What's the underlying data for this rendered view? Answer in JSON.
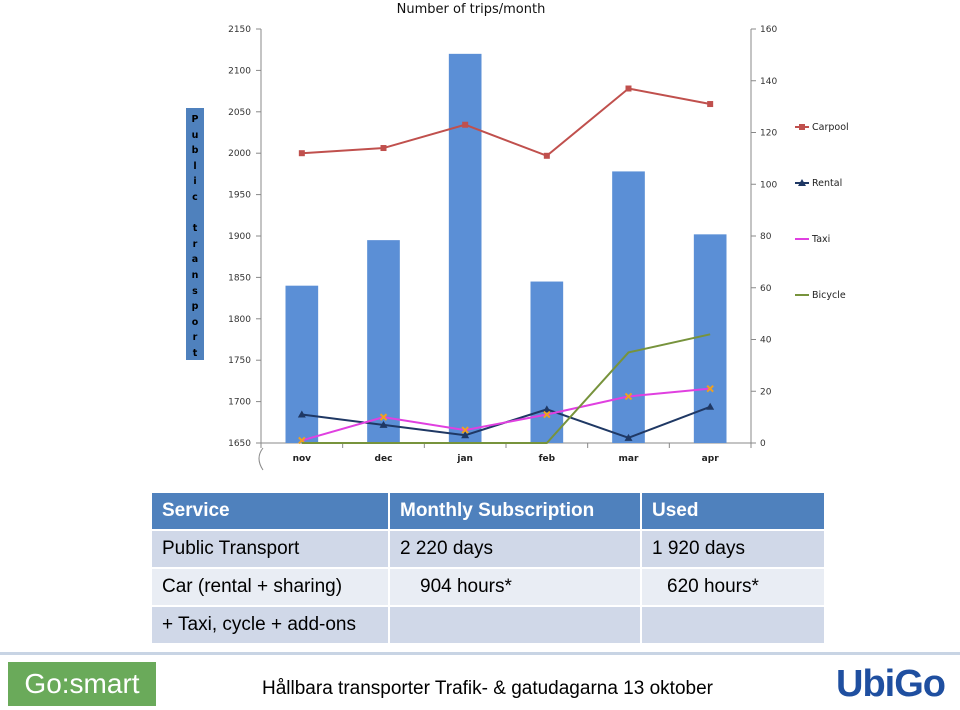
{
  "chart_data": {
    "type": "bar",
    "title": "Number of trips/month",
    "ylabel": "Public transport",
    "categories": [
      "nov",
      "dec",
      "jan",
      "feb",
      "mar",
      "apr"
    ],
    "y_left": {
      "min": 1650,
      "max": 2150,
      "ticks": [
        1650,
        1700,
        1750,
        1800,
        1850,
        1900,
        1950,
        2000,
        2050,
        2100,
        2150
      ]
    },
    "y_right": {
      "min": 0,
      "max": 160,
      "ticks": [
        0,
        20,
        40,
        60,
        80,
        100,
        120,
        140,
        160
      ]
    },
    "bars": {
      "values": [
        1840,
        1895,
        2120,
        1845,
        1978,
        1902
      ],
      "color": "#5b8fd6",
      "axis": "left"
    },
    "series": [
      {
        "name": "Carpool",
        "values": [
          112,
          114,
          123,
          111,
          137,
          131
        ],
        "color": "#c0504d",
        "marker": "square",
        "axis": "right"
      },
      {
        "name": "Rental",
        "values": [
          11,
          7,
          3,
          13,
          2,
          14
        ],
        "color": "#1f3864",
        "marker": "triangle",
        "axis": "right"
      },
      {
        "name": "Taxi",
        "values": [
          1,
          10,
          5,
          11,
          18,
          21
        ],
        "color": "#e040e0",
        "marker": "x",
        "axis": "right"
      },
      {
        "name": "Bicycle",
        "values": [
          0,
          0,
          0,
          0,
          35,
          42
        ],
        "color": "#77933c",
        "marker": "none",
        "axis": "right"
      }
    ],
    "grid": false,
    "legend_position": "right"
  },
  "table": {
    "headers": [
      "Service",
      "Monthly Subscription",
      "Used"
    ],
    "rows": [
      [
        "Public Transport",
        "2 220 days",
        "1 920 days"
      ],
      [
        "Car (rental + sharing)",
        "904 hours*",
        "620 hours*"
      ],
      [
        "+ Taxi, cycle + add-ons",
        "",
        ""
      ]
    ]
  },
  "footer": {
    "left_logo": "Go:smart",
    "text": "Hållbara transporter Trafik- & gatudagarna 13 oktober",
    "right_logo": "UbiGo"
  }
}
